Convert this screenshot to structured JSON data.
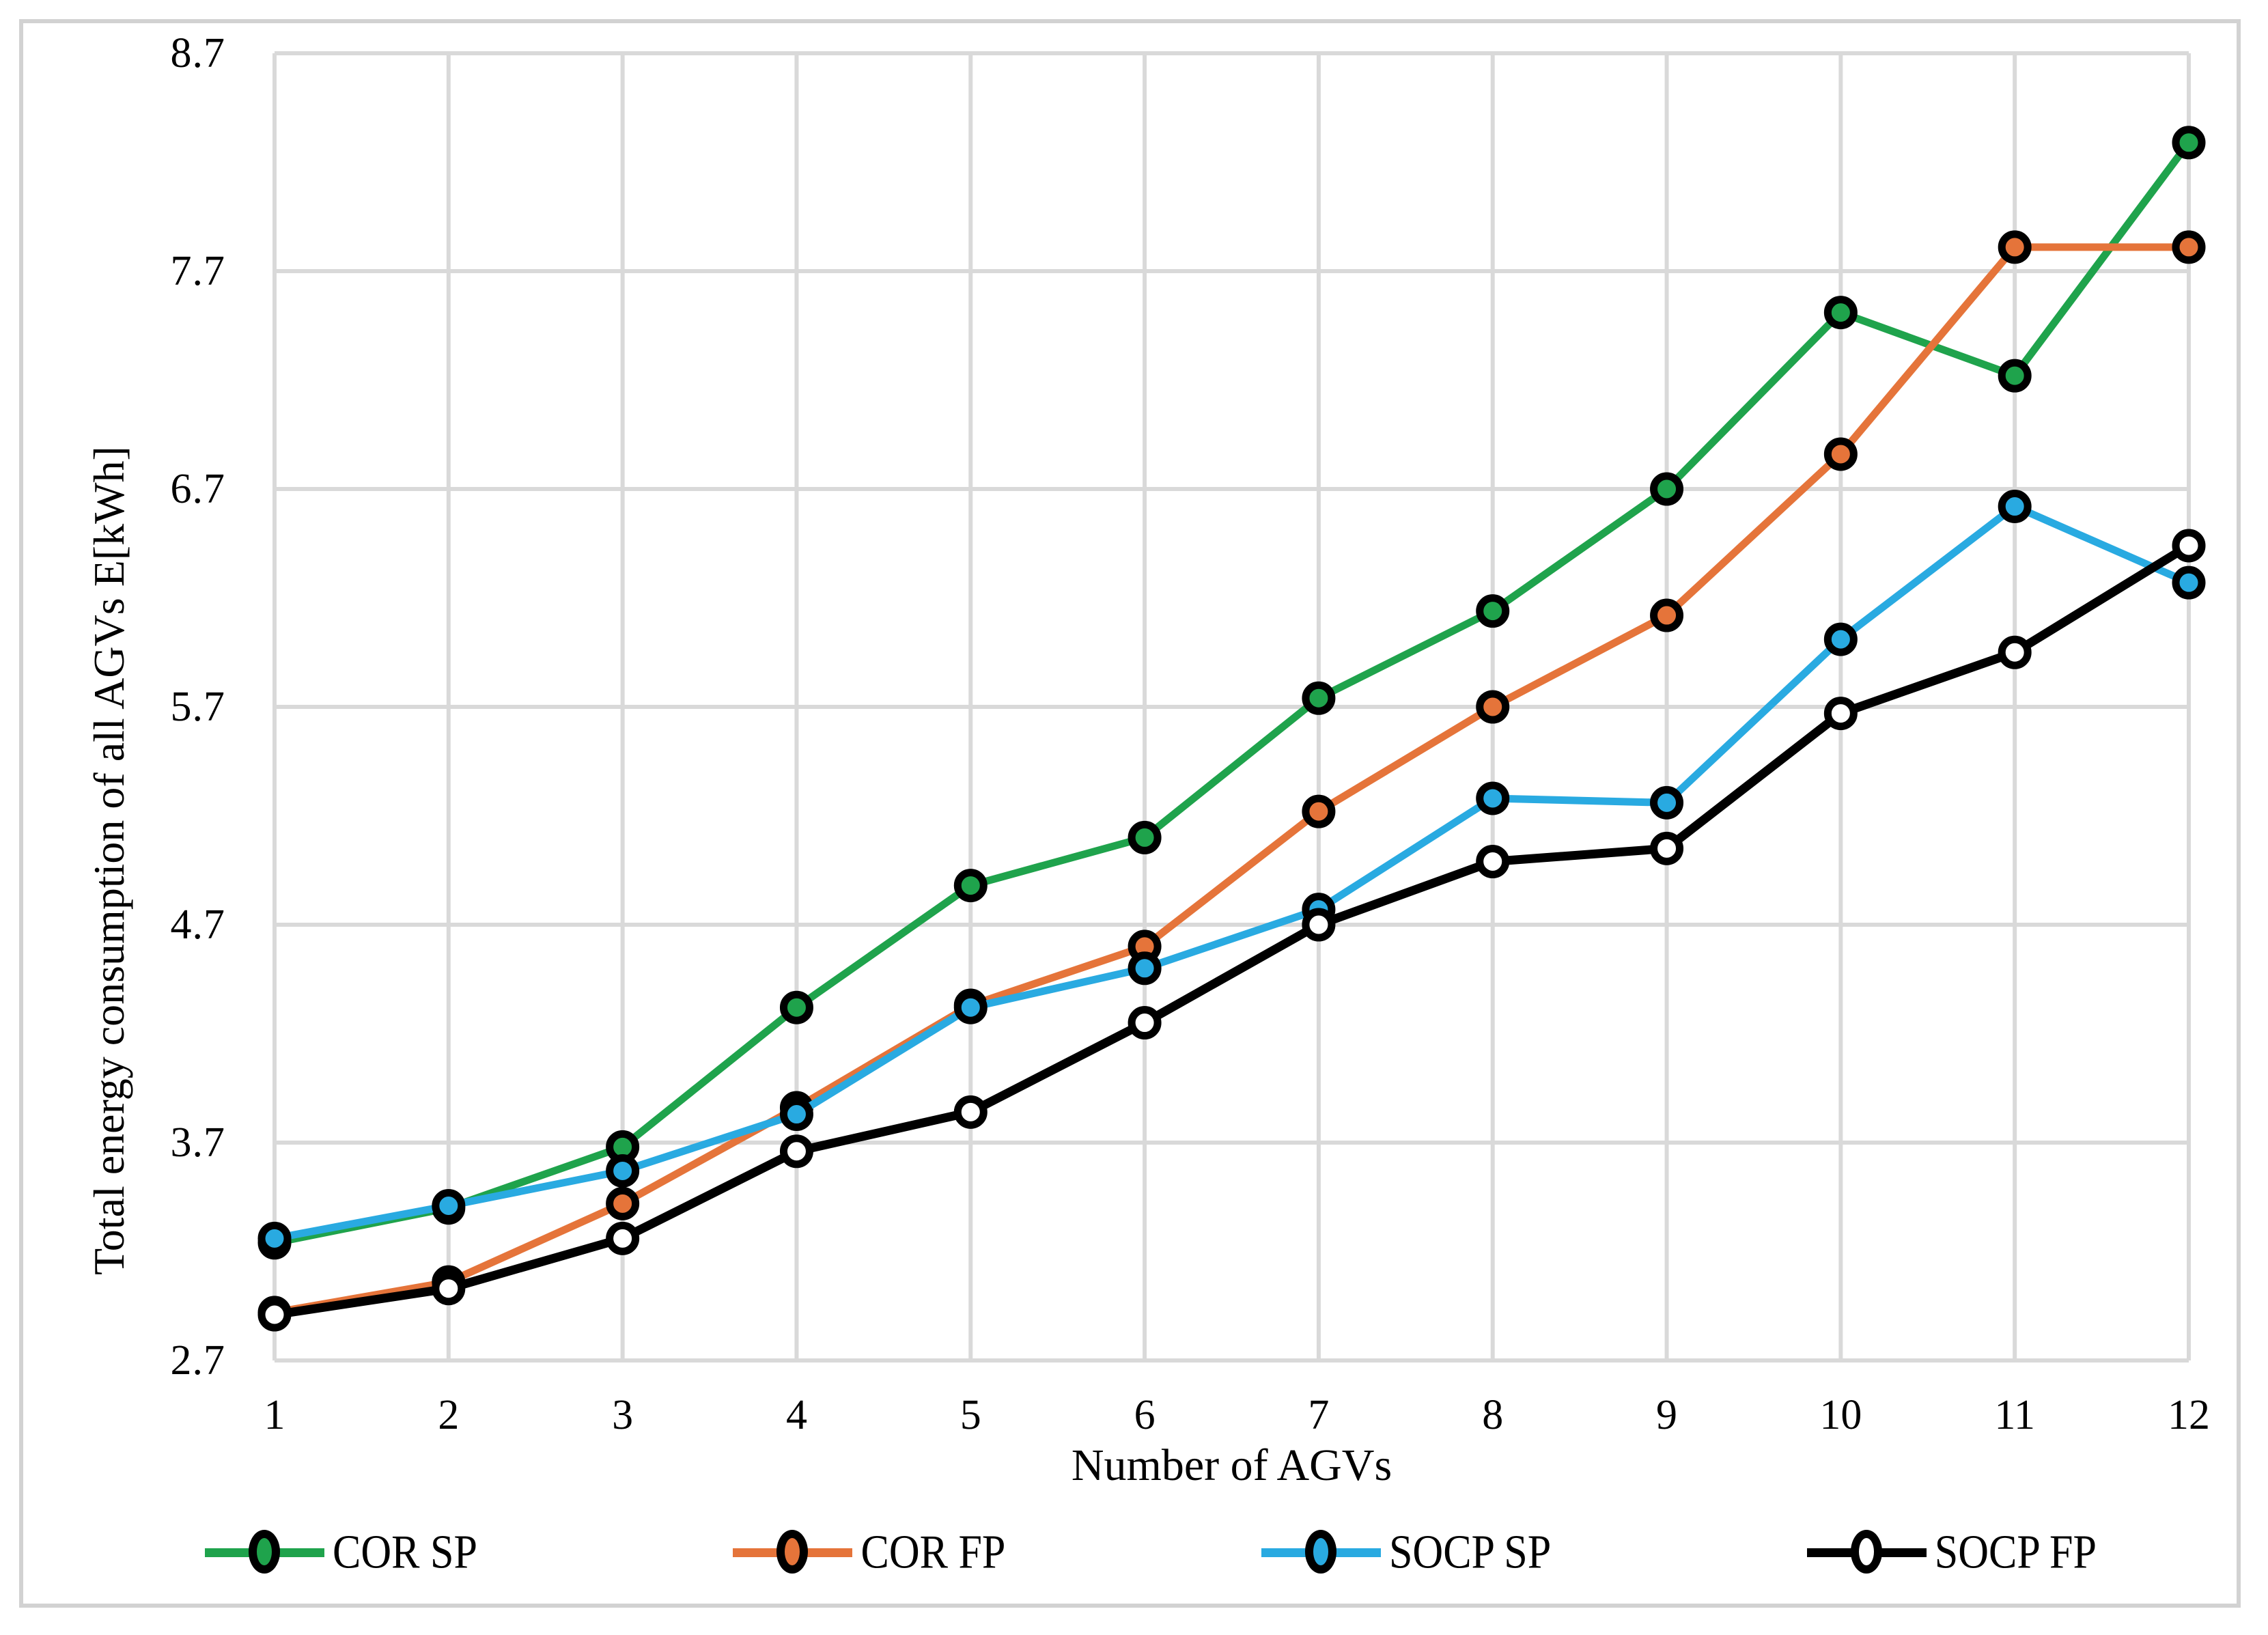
{
  "figure": {
    "background": "#FFFFFF",
    "border_color": "#D2D2D2"
  },
  "chart_data": {
    "type": "line",
    "title": "",
    "xlabel": "Number of AGVs",
    "ylabel": "Total energy consumption of all AGVs E[kWh]",
    "categories": [
      1,
      2,
      3,
      4,
      5,
      6,
      7,
      8,
      9,
      10,
      11,
      12
    ],
    "x_tick_labels": [
      "1",
      "2",
      "3",
      "4",
      "5",
      "6",
      "7",
      "8",
      "9",
      "10",
      "11",
      "12"
    ],
    "ylim": [
      2.7,
      8.7
    ],
    "y_tick_interval": 1.0,
    "y_tick_labels": [
      "8.7",
      "7.7",
      "6.7",
      "5.7",
      "4.7",
      "3.7",
      "2.7"
    ],
    "grid": "on",
    "grid_color": "#D9D9D9",
    "legend_position": "bottom",
    "series": [
      {
        "name": "COR SP",
        "color": "#1FA34C",
        "marker": "circle",
        "marker_fill": "#1FA34C",
        "values": [
          3.24,
          3.4,
          3.68,
          4.32,
          4.88,
          5.1,
          5.74,
          6.14,
          6.7,
          7.51,
          7.22,
          8.29
        ]
      },
      {
        "name": "COR FP",
        "color": "#E5743A",
        "marker": "circle",
        "marker_fill": "#E5743A",
        "values": [
          2.92,
          3.06,
          3.42,
          3.86,
          4.33,
          4.6,
          5.22,
          5.7,
          6.12,
          6.86,
          7.81,
          7.81
        ]
      },
      {
        "name": "SOCP SP",
        "color": "#29AAE1",
        "marker": "circle",
        "marker_fill": "#29AAE1",
        "values": [
          3.26,
          3.41,
          3.57,
          3.83,
          4.32,
          4.5,
          4.77,
          5.28,
          5.26,
          6.01,
          6.62,
          6.27
        ]
      },
      {
        "name": "SOCP FP",
        "color": "#000000",
        "marker": "circle",
        "marker_fill": "#FFFFFF",
        "values": [
          2.91,
          3.03,
          3.26,
          3.66,
          3.84,
          4.25,
          4.7,
          4.99,
          5.05,
          5.67,
          5.95,
          6.44
        ]
      }
    ]
  }
}
